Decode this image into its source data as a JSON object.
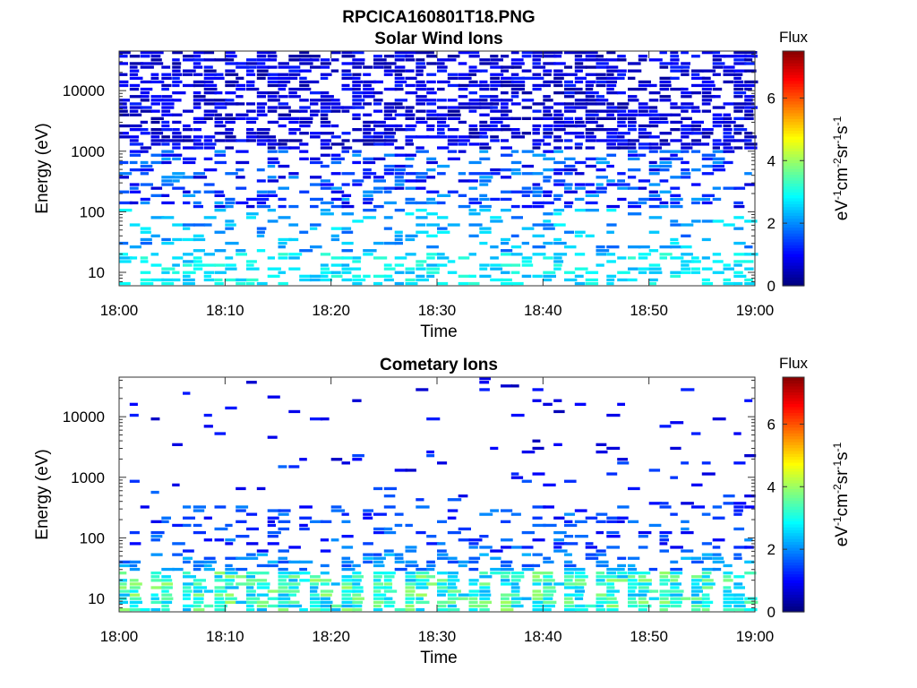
{
  "figure_title": "RPCICA160801T18.PNG",
  "chart_data": [
    {
      "type": "heatmap",
      "title": "Solar Wind Ions",
      "xlabel": "Time",
      "ylabel": "Energy (eV)",
      "x_ticks": [
        "18:00",
        "18:10",
        "18:20",
        "18:30",
        "18:40",
        "18:50",
        "19:00"
      ],
      "y_ticks": [
        "10",
        "100",
        "1000",
        "10000"
      ],
      "y_scale": "log",
      "ylim": [
        6,
        45000
      ],
      "xlim": [
        "18:00",
        "19:00"
      ],
      "grid": false,
      "colorbar": {
        "title": "Flux",
        "label": "eV-1cm-2sr-1s-1",
        "ticks": [
          "0",
          "2",
          "4",
          "6"
        ],
        "range": [
          0,
          7.5
        ],
        "colormap": "jet"
      },
      "description_levels": {
        "above_1000eV": "dense, mostly 0–1 (dark blue)",
        "100_to_1000eV": "scattered, 0.5–2 (blue)",
        "below_100eV": "sparse, 2–3 (cyan)"
      }
    },
    {
      "type": "heatmap",
      "title": "Cometary Ions",
      "xlabel": "Time",
      "ylabel": "Energy (eV)",
      "x_ticks": [
        "18:00",
        "18:10",
        "18:20",
        "18:30",
        "18:40",
        "18:50",
        "19:00"
      ],
      "y_ticks": [
        "10",
        "100",
        "1000",
        "10000"
      ],
      "y_scale": "log",
      "ylim": [
        6,
        45000
      ],
      "xlim": [
        "18:00",
        "19:00"
      ],
      "grid": false,
      "colorbar": {
        "title": "Flux",
        "label": "eV-1cm-2sr-1s-1",
        "ticks": [
          "0",
          "2",
          "4",
          "6"
        ],
        "range": [
          0,
          7.5
        ],
        "colormap": "jet"
      },
      "description_levels": {
        "above_1000eV": "very sparse, 0.5–1.5 (blue)",
        "100_to_1000eV": "sparse, 1–2 (blue)",
        "below_30eV": "periodic bands every ~3.3 min, 2–4 (cyan to green)"
      }
    }
  ]
}
